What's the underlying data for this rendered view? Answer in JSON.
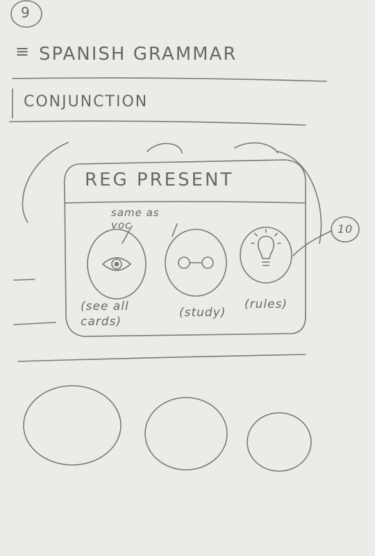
{
  "page_number": "9",
  "header": {
    "menu_glyph": "≡",
    "title": "SPANISH GRAMMAR"
  },
  "section": {
    "title": "CONJUNCTION"
  },
  "card": {
    "title": "REG PRESENT",
    "note": "same as voc",
    "actions": [
      {
        "icon": "eye-icon",
        "label": "(see all cards)",
        "label_lines": [
          "(see all",
          "cards)"
        ]
      },
      {
        "icon": "glasses-icon",
        "label": "(study)",
        "label_lines": [
          "(study)"
        ]
      },
      {
        "icon": "lightbulb-icon",
        "label": "(rules)",
        "label_lines": [
          "(rules)"
        ]
      }
    ]
  },
  "annotation": {
    "marker": "10"
  },
  "colors": {
    "paper": "#ecebe8",
    "pencil": "#6c6a66"
  }
}
